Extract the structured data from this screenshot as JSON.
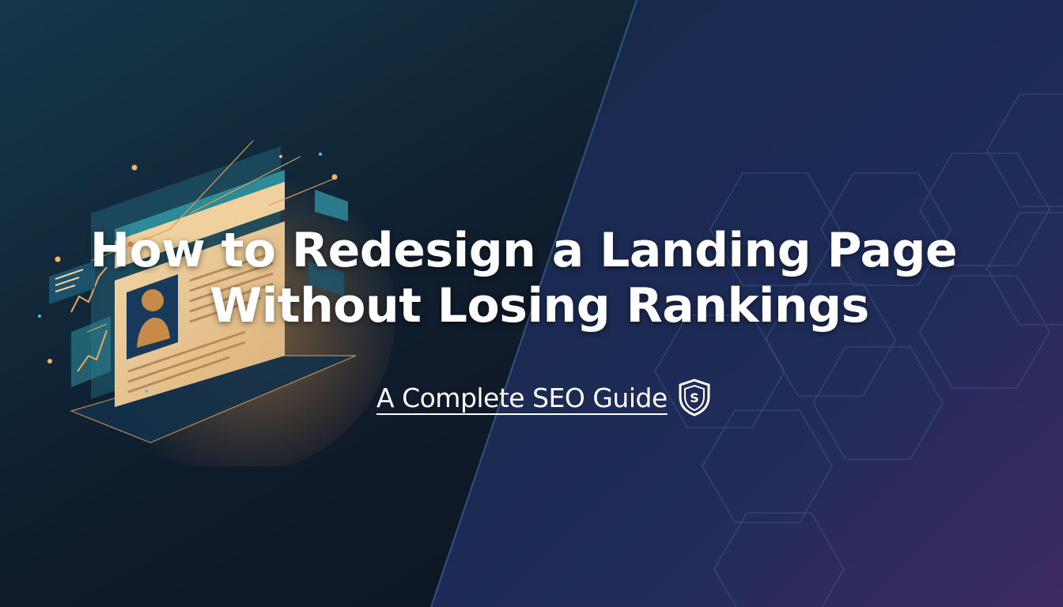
{
  "hero": {
    "title_line1": "How to Redesign a Landing Page",
    "title_line2": "Without Losing Rankings",
    "subtitle": "A Complete SEO Guide",
    "subtitle_icon": "shield-dollar-icon"
  },
  "colors": {
    "left_background": "#0e1828",
    "right_background": "#1c2b52",
    "accent_purple": "#3b2a62",
    "accent_gold": "#f0c98a",
    "accent_teal": "#2e7a8c"
  }
}
